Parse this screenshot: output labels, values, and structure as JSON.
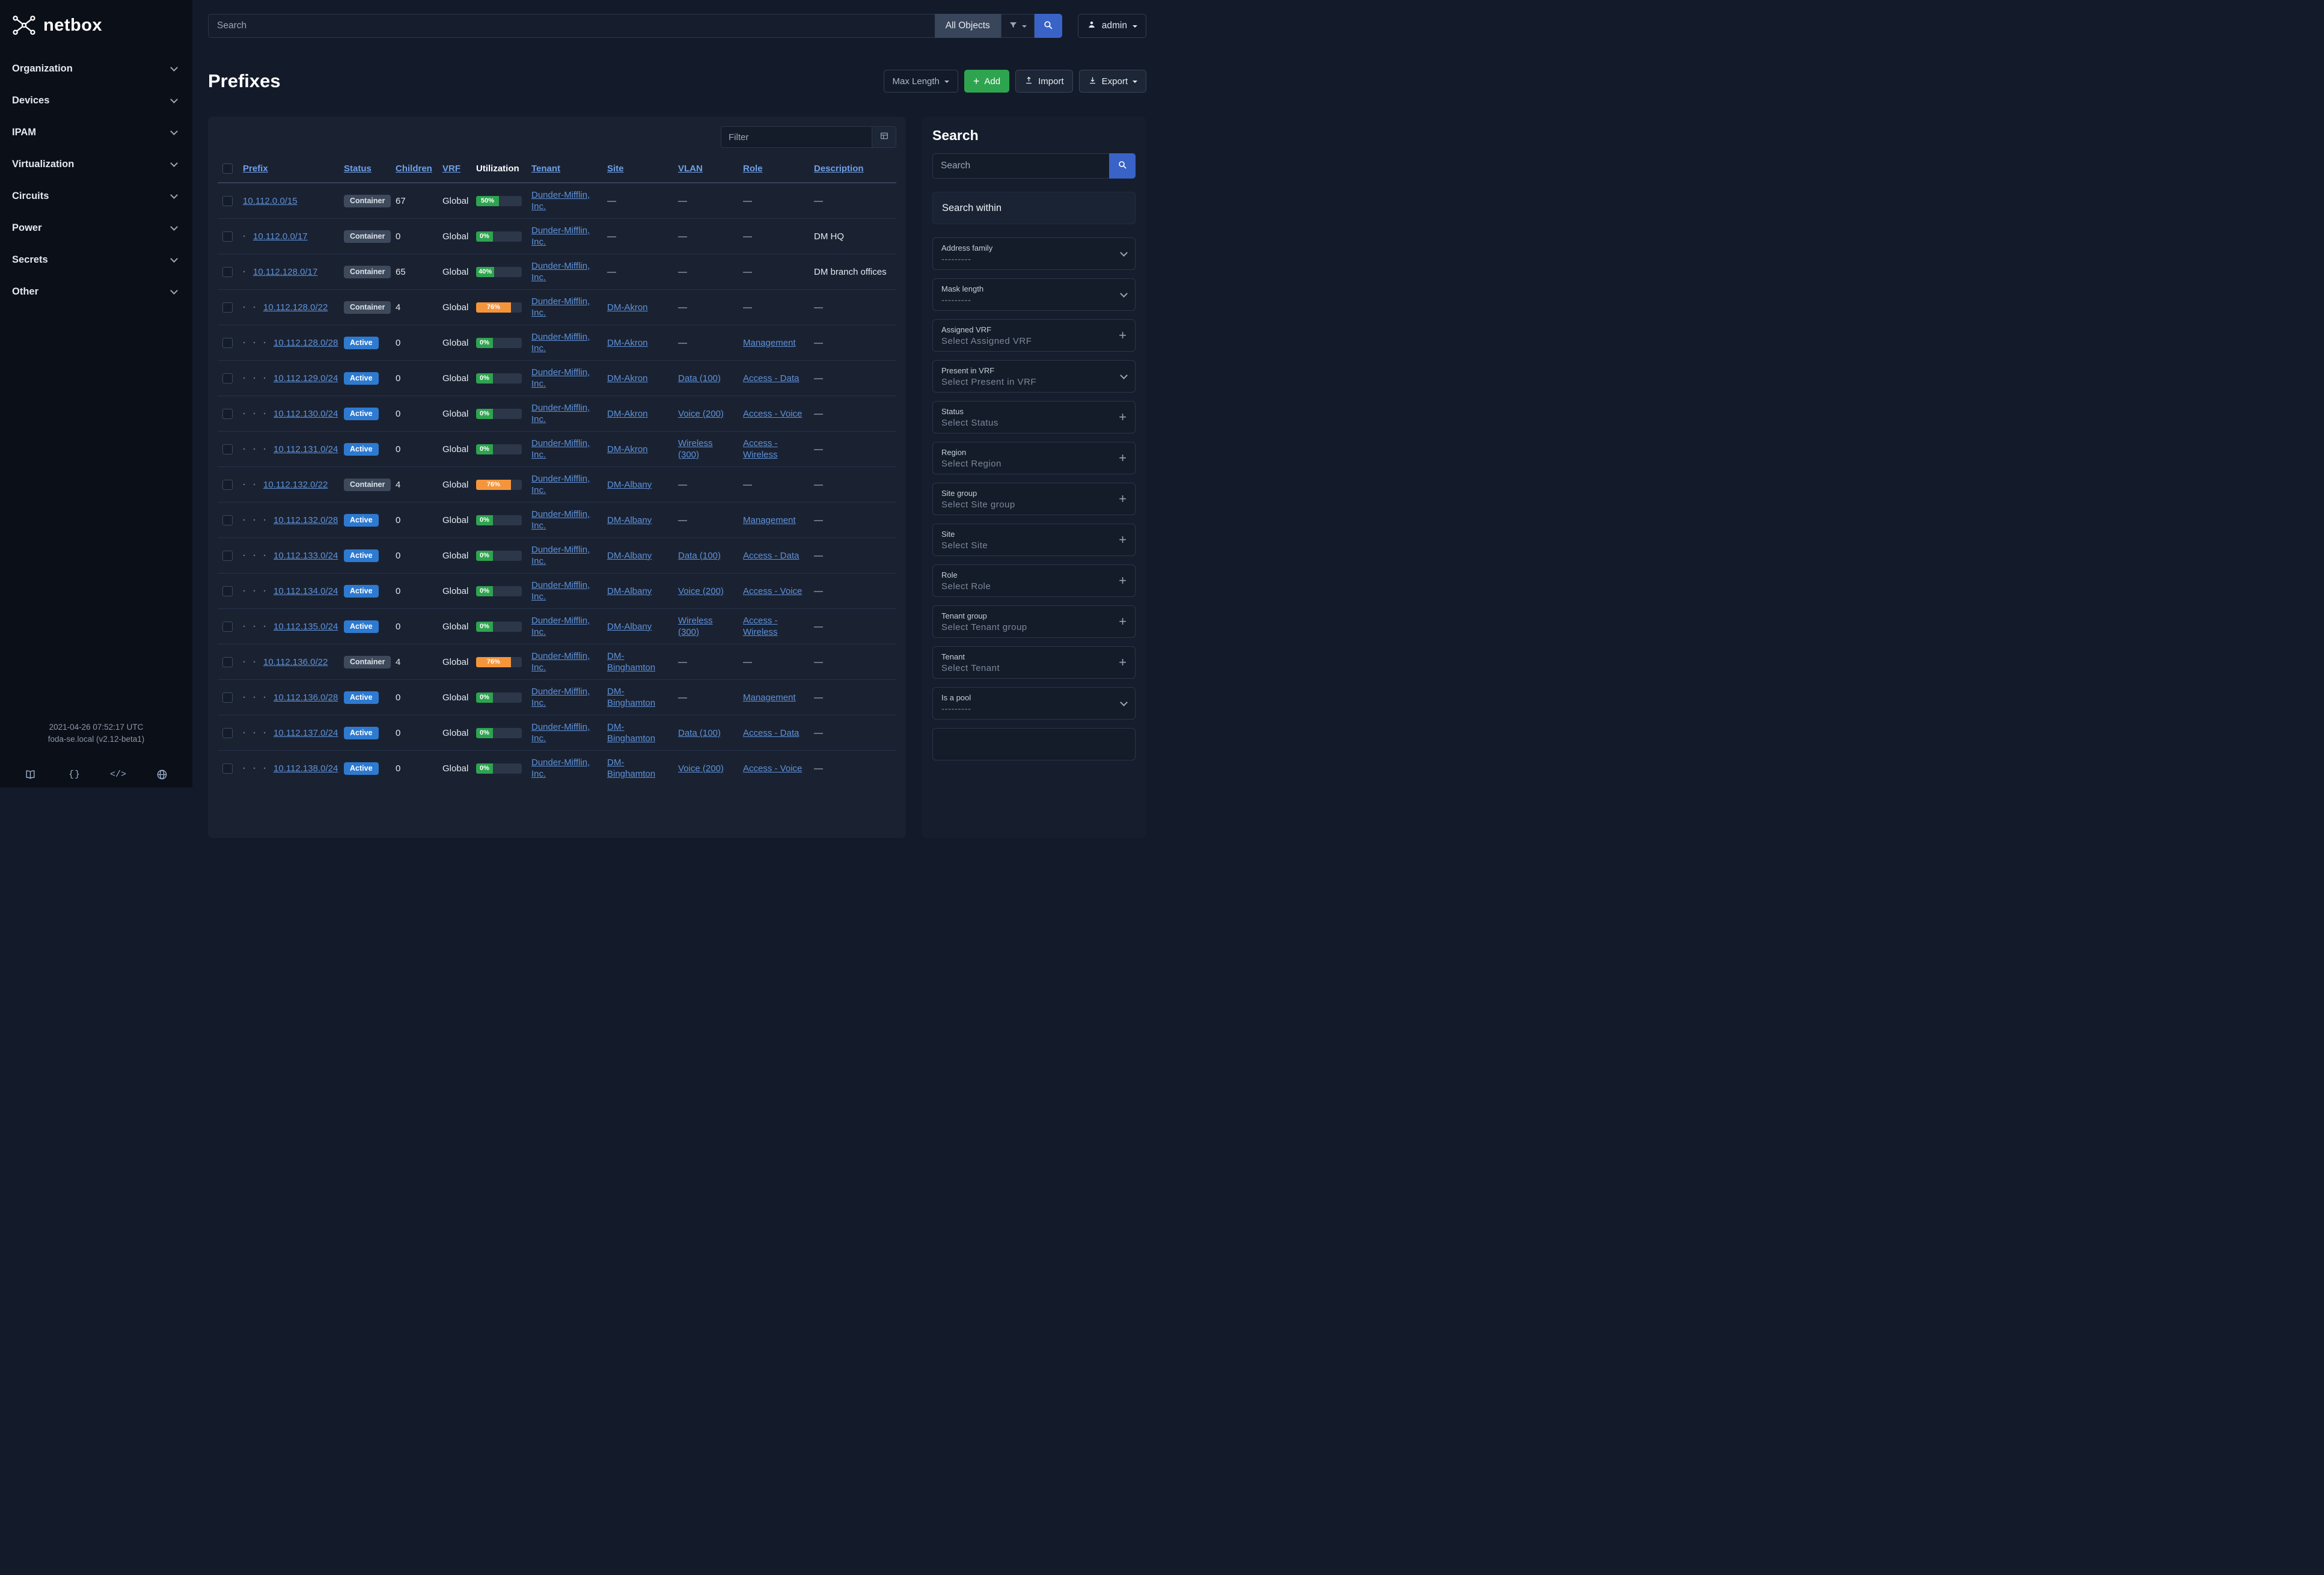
{
  "brand": {
    "name": "netbox"
  },
  "topbar": {
    "search_placeholder": "Search",
    "scope_label": "All Objects",
    "user": "admin"
  },
  "page": {
    "title": "Prefixes",
    "toolbar": {
      "max_length": "Max Length",
      "add": "Add",
      "import": "Import",
      "export": "Export"
    }
  },
  "sidebar": {
    "items": [
      {
        "label": "Organization"
      },
      {
        "label": "Devices"
      },
      {
        "label": "IPAM"
      },
      {
        "label": "Virtualization"
      },
      {
        "label": "Circuits"
      },
      {
        "label": "Power"
      },
      {
        "label": "Secrets"
      },
      {
        "label": "Other"
      }
    ],
    "footer": {
      "timestamp": "2021-04-26 07:52:17 UTC",
      "version": "foda-se.local (v2.12-beta1)",
      "icons": [
        "docs-book-icon",
        "api-braces-icon",
        "code-icon",
        "globe-icon"
      ]
    }
  },
  "table": {
    "filter_placeholder": "Filter",
    "columns": [
      {
        "label": "",
        "type": "checkbox"
      },
      {
        "label": "Prefix",
        "sortable": true
      },
      {
        "label": "Status",
        "sortable": true
      },
      {
        "label": "Children",
        "sortable": true
      },
      {
        "label": "VRF",
        "sortable": true
      },
      {
        "label": "Utilization",
        "sortable": false
      },
      {
        "label": "Tenant",
        "sortable": true
      },
      {
        "label": "Site",
        "sortable": true
      },
      {
        "label": "VLAN",
        "sortable": true
      },
      {
        "label": "Role",
        "sortable": true
      },
      {
        "label": "Description",
        "sortable": true
      }
    ],
    "rows": [
      {
        "depth": 0,
        "prefix": "10.112.0.0/15",
        "status": "Container",
        "variant": "container",
        "children": "67",
        "vrf": "Global",
        "util": 50,
        "util_variant": "success",
        "tenant": "Dunder-Mifflin, Inc.",
        "site": "—",
        "vlan": "—",
        "role": "—",
        "description": "—"
      },
      {
        "depth": 1,
        "prefix": "10.112.0.0/17",
        "status": "Container",
        "variant": "container",
        "children": "0",
        "vrf": "Global",
        "util": 0,
        "util_variant": "success",
        "tenant": "Dunder-Mifflin, Inc.",
        "site": "—",
        "vlan": "—",
        "role": "—",
        "description": "DM HQ"
      },
      {
        "depth": 1,
        "prefix": "10.112.128.0/17",
        "status": "Container",
        "variant": "container",
        "children": "65",
        "vrf": "Global",
        "util": 40,
        "util_variant": "success",
        "tenant": "Dunder-Mifflin, Inc.",
        "site": "—",
        "vlan": "—",
        "role": "—",
        "description": "DM branch offices"
      },
      {
        "depth": 2,
        "prefix": "10.112.128.0/22",
        "status": "Container",
        "variant": "container",
        "children": "4",
        "vrf": "Global",
        "util": 76,
        "util_variant": "warning",
        "tenant": "Dunder-Mifflin, Inc.",
        "site": "DM-Akron",
        "vlan": "—",
        "role": "—",
        "description": "—"
      },
      {
        "depth": 3,
        "prefix": "10.112.128.0/28",
        "status": "Active",
        "variant": "active",
        "children": "0",
        "vrf": "Global",
        "util": 0,
        "util_variant": "success",
        "tenant": "Dunder-Mifflin, Inc.",
        "site": "DM-Akron",
        "vlan": "—",
        "role": "Management",
        "description": "—"
      },
      {
        "depth": 3,
        "prefix": "10.112.129.0/24",
        "status": "Active",
        "variant": "active",
        "children": "0",
        "vrf": "Global",
        "util": 0,
        "util_variant": "success",
        "tenant": "Dunder-Mifflin, Inc.",
        "site": "DM-Akron",
        "vlan": "Data (100)",
        "role": "Access - Data",
        "description": "—"
      },
      {
        "depth": 3,
        "prefix": "10.112.130.0/24",
        "status": "Active",
        "variant": "active",
        "children": "0",
        "vrf": "Global",
        "util": 0,
        "util_variant": "success",
        "tenant": "Dunder-Mifflin, Inc.",
        "site": "DM-Akron",
        "vlan": "Voice (200)",
        "role": "Access - Voice",
        "description": "—"
      },
      {
        "depth": 3,
        "prefix": "10.112.131.0/24",
        "status": "Active",
        "variant": "active",
        "children": "0",
        "vrf": "Global",
        "util": 0,
        "util_variant": "success",
        "tenant": "Dunder-Mifflin, Inc.",
        "site": "DM-Akron",
        "vlan": "Wireless (300)",
        "role": "Access - Wireless",
        "description": "—"
      },
      {
        "depth": 2,
        "prefix": "10.112.132.0/22",
        "status": "Container",
        "variant": "container",
        "children": "4",
        "vrf": "Global",
        "util": 76,
        "util_variant": "warning",
        "tenant": "Dunder-Mifflin, Inc.",
        "site": "DM-Albany",
        "vlan": "—",
        "role": "—",
        "description": "—"
      },
      {
        "depth": 3,
        "prefix": "10.112.132.0/28",
        "status": "Active",
        "variant": "active",
        "children": "0",
        "vrf": "Global",
        "util": 0,
        "util_variant": "success",
        "tenant": "Dunder-Mifflin, Inc.",
        "site": "DM-Albany",
        "vlan": "—",
        "role": "Management",
        "description": "—"
      },
      {
        "depth": 3,
        "prefix": "10.112.133.0/24",
        "status": "Active",
        "variant": "active",
        "children": "0",
        "vrf": "Global",
        "util": 0,
        "util_variant": "success",
        "tenant": "Dunder-Mifflin, Inc.",
        "site": "DM-Albany",
        "vlan": "Data (100)",
        "role": "Access - Data",
        "description": "—"
      },
      {
        "depth": 3,
        "prefix": "10.112.134.0/24",
        "status": "Active",
        "variant": "active",
        "children": "0",
        "vrf": "Global",
        "util": 0,
        "util_variant": "success",
        "tenant": "Dunder-Mifflin, Inc.",
        "site": "DM-Albany",
        "vlan": "Voice (200)",
        "role": "Access - Voice",
        "description": "—"
      },
      {
        "depth": 3,
        "prefix": "10.112.135.0/24",
        "status": "Active",
        "variant": "active",
        "children": "0",
        "vrf": "Global",
        "util": 0,
        "util_variant": "success",
        "tenant": "Dunder-Mifflin, Inc.",
        "site": "DM-Albany",
        "vlan": "Wireless (300)",
        "role": "Access - Wireless",
        "description": "—"
      },
      {
        "depth": 2,
        "prefix": "10.112.136.0/22",
        "status": "Container",
        "variant": "container",
        "children": "4",
        "vrf": "Global",
        "util": 76,
        "util_variant": "warning",
        "tenant": "Dunder-Mifflin, Inc.",
        "site": "DM-Binghamton",
        "vlan": "—",
        "role": "—",
        "description": "—"
      },
      {
        "depth": 3,
        "prefix": "10.112.136.0/28",
        "status": "Active",
        "variant": "active",
        "children": "0",
        "vrf": "Global",
        "util": 0,
        "util_variant": "success",
        "tenant": "Dunder-Mifflin, Inc.",
        "site": "DM-Binghamton",
        "vlan": "—",
        "role": "Management",
        "description": "—"
      },
      {
        "depth": 3,
        "prefix": "10.112.137.0/24",
        "status": "Active",
        "variant": "active",
        "children": "0",
        "vrf": "Global",
        "util": 0,
        "util_variant": "success",
        "tenant": "Dunder-Mifflin, Inc.",
        "site": "DM-Binghamton",
        "vlan": "Data (100)",
        "role": "Access - Data",
        "description": "—"
      },
      {
        "depth": 3,
        "prefix": "10.112.138.0/24",
        "status": "Active",
        "variant": "active",
        "children": "0",
        "vrf": "Global",
        "util": 0,
        "util_variant": "success",
        "tenant": "Dunder-Mifflin, Inc.",
        "site": "DM-Binghamton",
        "vlan": "Voice (200)",
        "role": "Access - Voice",
        "description": "—"
      }
    ]
  },
  "filters_panel": {
    "title": "Search",
    "search_placeholder": "Search",
    "search_within": "Search within",
    "fields": [
      {
        "label": "Address family",
        "value": "---------",
        "control": "select"
      },
      {
        "label": "Mask length",
        "value": "---------",
        "control": "select"
      },
      {
        "label": "Assigned VRF",
        "value": "Select Assigned VRF",
        "control": "add"
      },
      {
        "label": "Present in VRF",
        "value": "Select Present in VRF",
        "control": "select"
      },
      {
        "label": "Status",
        "value": "Select Status",
        "control": "add"
      },
      {
        "label": "Region",
        "value": "Select Region",
        "control": "add"
      },
      {
        "label": "Site group",
        "value": "Select Site group",
        "control": "add"
      },
      {
        "label": "Site",
        "value": "Select Site",
        "control": "add"
      },
      {
        "label": "Role",
        "value": "Select Role",
        "control": "add"
      },
      {
        "label": "Tenant group",
        "value": "Select Tenant group",
        "control": "add"
      },
      {
        "label": "Tenant",
        "value": "Select Tenant",
        "control": "add"
      },
      {
        "label": "Is a pool",
        "value": "---------",
        "control": "select"
      }
    ]
  },
  "icons": {
    "logo-icon": "netbox-mark",
    "search-icon": "magnifier",
    "filter-icon": "funnel",
    "caret-down-icon": "triangle-down",
    "chevron-down-icon": "chevron-down",
    "user-icon": "person",
    "plus-icon": "+",
    "upload-icon": "arrow-up-tray",
    "download-icon": "arrow-down-tray",
    "table-icon": "grid",
    "docs-book-icon": "book",
    "api-braces-icon": "{}",
    "code-icon": "</>",
    "globe-icon": "globe",
    "checkbox": "empty-square"
  },
  "colors": {
    "accent_blue": "#3a63c8",
    "link_blue": "#5e92d9",
    "active_badge_blue": "#2e7ad0",
    "container_badge_gray": "#3e4a5c",
    "success_green": "#2ea44f",
    "warning_orange": "#f5953b",
    "add_button_green": "#2ea44f",
    "sidebar_bg": "#0b0f17",
    "main_bg": "#131a29",
    "card_bg": "#1a2232"
  }
}
